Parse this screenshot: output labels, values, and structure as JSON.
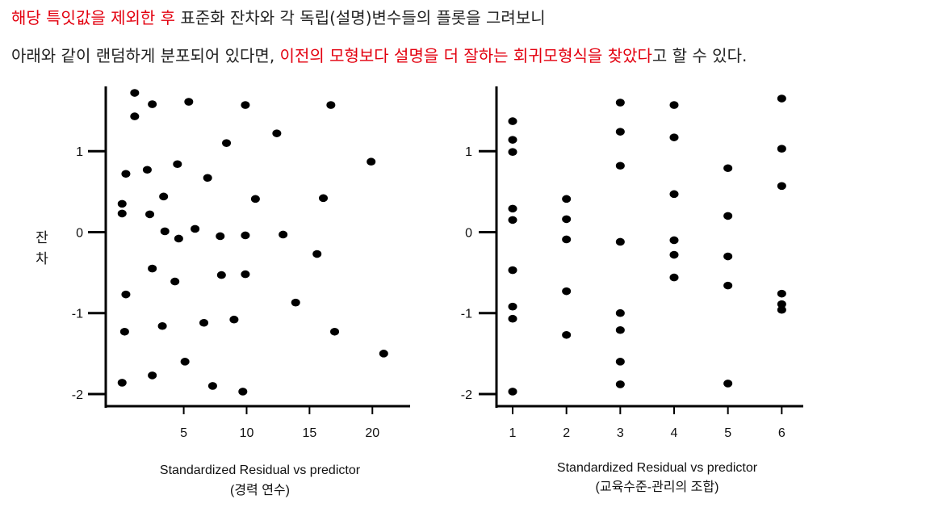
{
  "text": {
    "line1": {
      "red": "해당 특잇값을 제외한 후",
      "rest": " 표준화 잔차와 각 독립(설명)변수들의 플롯을 그려보니"
    },
    "line2": {
      "pre": "아래와 같이 랜덤하게 분포되어 있다면, ",
      "red": "이전의 모형보다 설명을 더 잘하는 회귀모형식을 찾았다",
      "post": "고 할 수 있다."
    }
  },
  "colors": {
    "accent": "#e3000f",
    "points": "#000000"
  },
  "chart_data": [
    {
      "type": "scatter",
      "title": "",
      "xlabel": "Standardized Residual vs predictor",
      "xlabel2": "(경력 연수)",
      "ylabel": "잔차",
      "xlim": [
        -1.2,
        23
      ],
      "ylim": [
        -2.15,
        1.8
      ],
      "xticks": [
        5,
        10,
        15,
        20
      ],
      "yticks": [
        {
          "v": 1,
          "label": "1"
        },
        {
          "v": 0,
          "label": "0"
        },
        {
          "v": -1,
          "label": "-1"
        },
        {
          "v": -2,
          "label": "-2"
        }
      ],
      "points": [
        [
          1.1,
          1.72
        ],
        [
          1.1,
          1.43
        ],
        [
          2.5,
          1.58
        ],
        [
          5.4,
          1.61
        ],
        [
          9.9,
          1.57
        ],
        [
          16.7,
          1.57
        ],
        [
          12.4,
          1.22
        ],
        [
          8.4,
          1.1
        ],
        [
          19.9,
          0.87
        ],
        [
          4.5,
          0.84
        ],
        [
          0.4,
          0.72
        ],
        [
          2.1,
          0.77
        ],
        [
          6.9,
          0.67
        ],
        [
          0.1,
          0.35
        ],
        [
          0.1,
          0.23
        ],
        [
          3.4,
          0.44
        ],
        [
          2.3,
          0.22
        ],
        [
          10.7,
          0.41
        ],
        [
          16.1,
          0.42
        ],
        [
          3.5,
          0.01
        ],
        [
          4.6,
          -0.08
        ],
        [
          5.9,
          0.04
        ],
        [
          7.9,
          -0.05
        ],
        [
          9.9,
          -0.04
        ],
        [
          12.9,
          -0.03
        ],
        [
          15.6,
          -0.27
        ],
        [
          2.5,
          -0.45
        ],
        [
          4.3,
          -0.61
        ],
        [
          8.0,
          -0.53
        ],
        [
          9.9,
          -0.52
        ],
        [
          0.4,
          -0.77
        ],
        [
          13.9,
          -0.87
        ],
        [
          0.3,
          -1.23
        ],
        [
          3.3,
          -1.16
        ],
        [
          6.6,
          -1.12
        ],
        [
          9.0,
          -1.08
        ],
        [
          17.0,
          -1.23
        ],
        [
          20.9,
          -1.5
        ],
        [
          5.1,
          -1.6
        ],
        [
          0.1,
          -1.86
        ],
        [
          2.5,
          -1.77
        ],
        [
          7.3,
          -1.9
        ],
        [
          9.7,
          -1.97
        ]
      ]
    },
    {
      "type": "scatter",
      "title": "",
      "xlabel": "Standardized Residual vs predictor",
      "xlabel2": "(교육수준-관리의 조합)",
      "ylabel": "",
      "xlim": [
        0.7,
        6.4
      ],
      "ylim": [
        -2.15,
        1.8
      ],
      "xticks": [
        1,
        2,
        3,
        4,
        5,
        6
      ],
      "yticks": [
        {
          "v": 1,
          "label": "1"
        },
        {
          "v": 0,
          "label": "0"
        },
        {
          "v": -1,
          "label": "-1"
        },
        {
          "v": -2,
          "label": "-2"
        }
      ],
      "points": [
        [
          1,
          1.37
        ],
        [
          1,
          1.14
        ],
        [
          1,
          0.99
        ],
        [
          1,
          0.29
        ],
        [
          1,
          0.15
        ],
        [
          1,
          -0.47
        ],
        [
          1,
          -0.92
        ],
        [
          1,
          -1.07
        ],
        [
          1,
          -1.97
        ],
        [
          2,
          0.41
        ],
        [
          2,
          0.16
        ],
        [
          2,
          -0.09
        ],
        [
          2,
          -0.73
        ],
        [
          2,
          -1.27
        ],
        [
          3,
          1.6
        ],
        [
          3,
          1.24
        ],
        [
          3,
          0.82
        ],
        [
          3,
          -0.12
        ],
        [
          3,
          -1.0
        ],
        [
          3,
          -1.21
        ],
        [
          3,
          -1.6
        ],
        [
          3,
          -1.88
        ],
        [
          4,
          1.57
        ],
        [
          4,
          1.17
        ],
        [
          4,
          0.47
        ],
        [
          4,
          -0.1
        ],
        [
          4,
          -0.28
        ],
        [
          4,
          -0.56
        ],
        [
          5,
          0.79
        ],
        [
          5,
          0.2
        ],
        [
          5,
          -0.3
        ],
        [
          5,
          -0.66
        ],
        [
          5,
          -1.87
        ],
        [
          6,
          1.65
        ],
        [
          6,
          1.03
        ],
        [
          6,
          0.57
        ],
        [
          6,
          -0.76
        ],
        [
          6,
          -0.89
        ],
        [
          6,
          -0.96
        ]
      ]
    }
  ]
}
